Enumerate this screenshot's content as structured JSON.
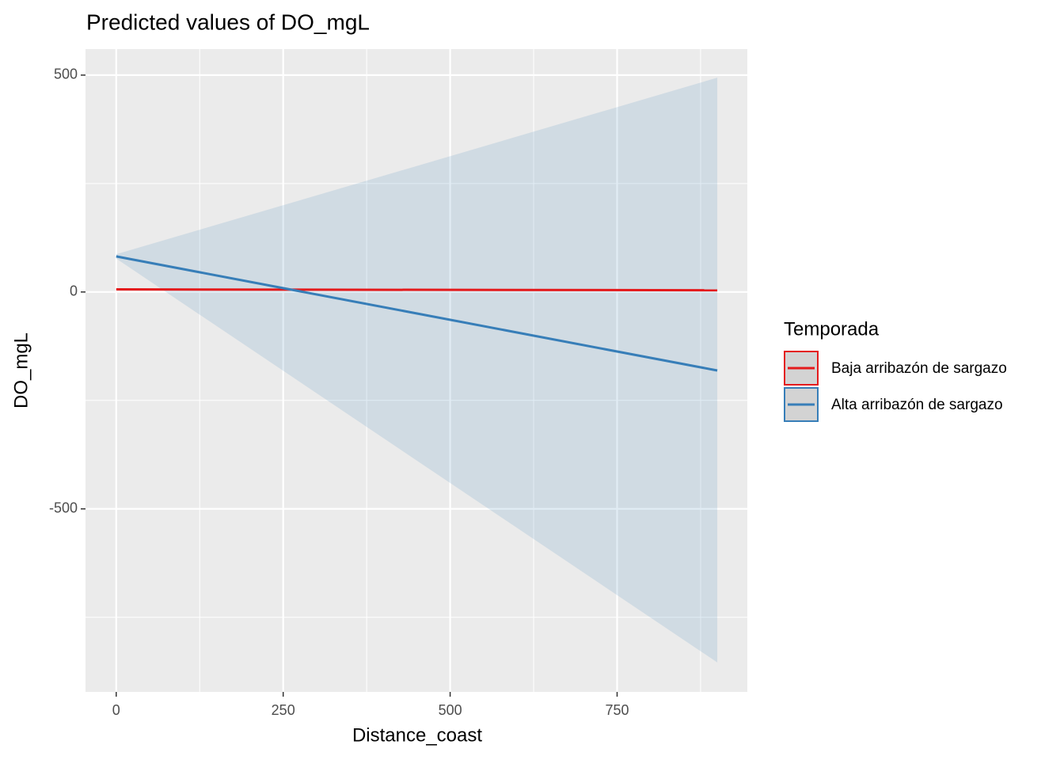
{
  "chart_data": {
    "type": "line",
    "title": "Predicted values of DO_mgL",
    "x_label": "Distance_coast",
    "y_label": "DO_mgL",
    "legend_title": "Temporada",
    "legend_position": "right",
    "x": [
      0,
      900
    ],
    "series": [
      {
        "name": "Baja arribazón de sargazo",
        "color": "#e41a1c",
        "values": [
          6,
          4
        ],
        "lower": [
          5,
          3
        ],
        "upper": [
          7,
          5
        ]
      },
      {
        "name": "Alta arribazón de sargazo",
        "color": "#377eb8",
        "values": [
          82,
          -181
        ],
        "lower": [
          77,
          -854
        ],
        "upper": [
          87,
          494
        ]
      }
    ],
    "xlim": [
      -46,
      945
    ],
    "ylim": [
      -922,
      560
    ],
    "xticks": [
      0,
      250,
      500,
      750
    ],
    "yticks": [
      -500,
      0,
      500
    ],
    "x_minor_ticks": [
      125,
      375,
      625,
      875
    ],
    "y_minor_ticks": [
      -750,
      -250,
      250
    ],
    "grid": true
  }
}
